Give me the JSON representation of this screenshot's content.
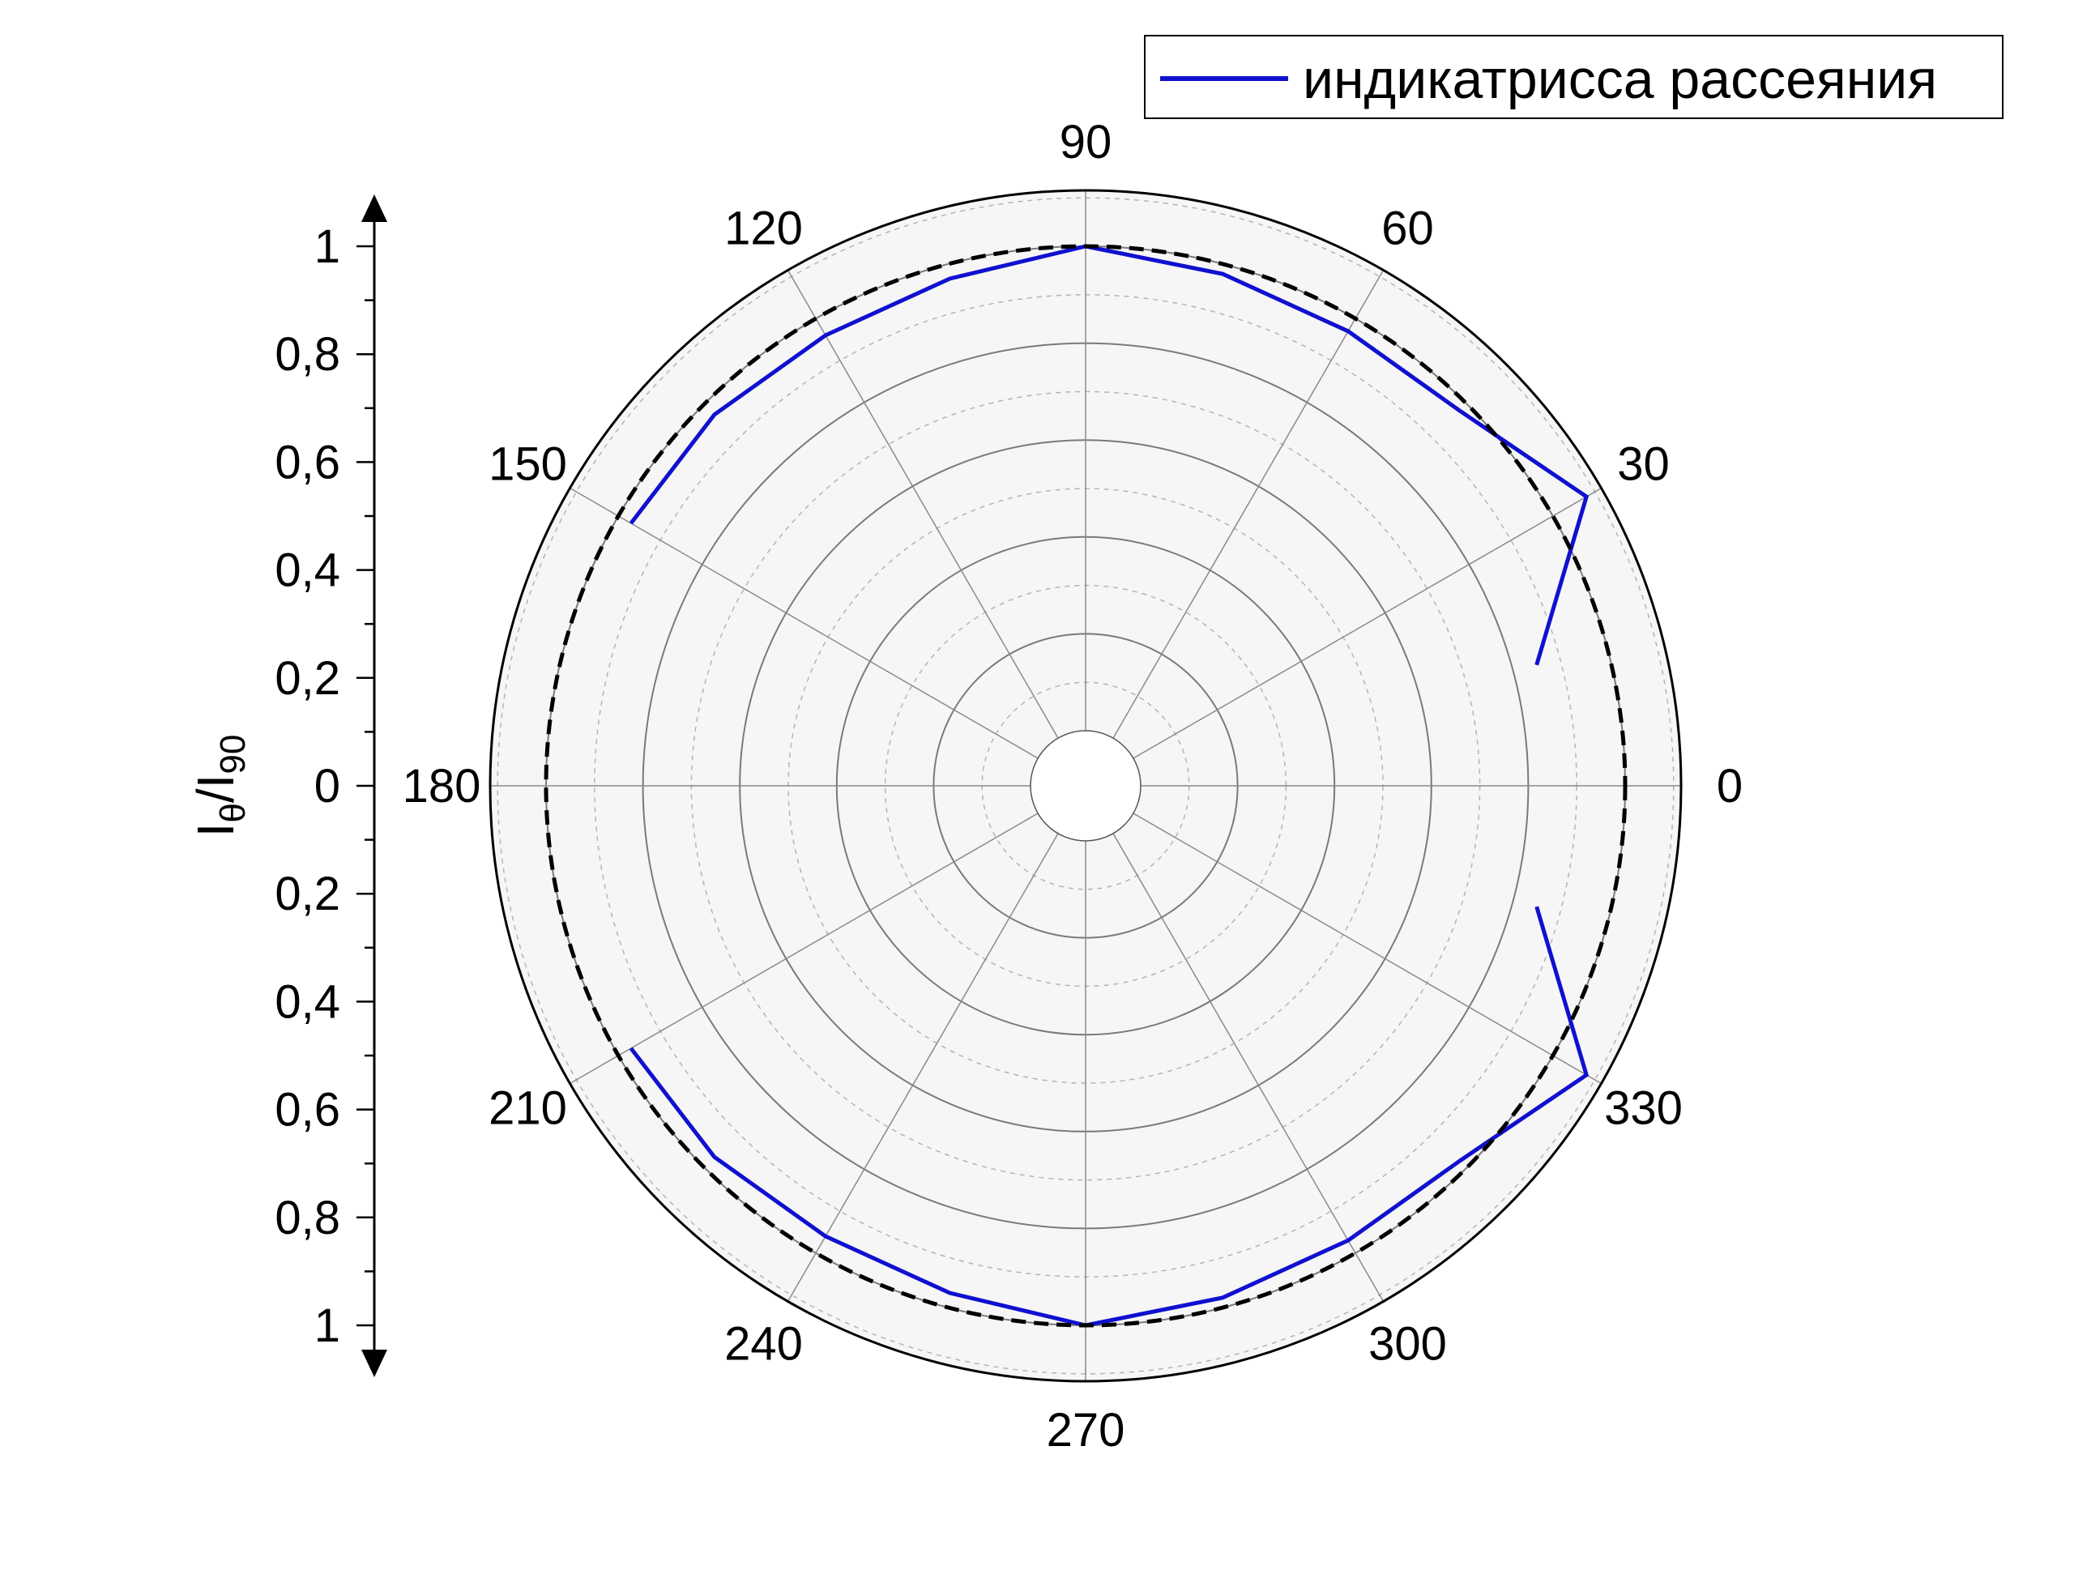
{
  "chart_data": {
    "type": "line",
    "projection": "polar",
    "angle_unit": "degrees",
    "angular_ticks": [
      "0",
      "30",
      "60",
      "90",
      "120",
      "150",
      "180",
      "210",
      "240",
      "270",
      "300",
      "330"
    ],
    "radial_axis": {
      "label_main": "I",
      "label_sub1": "θ",
      "label_slash": "/I",
      "label_sub2": "90",
      "ticks_upper": [
        "1",
        "0,8",
        "0,6",
        "0,4",
        "0,2",
        "0"
      ],
      "ticks_lower": [
        "0,2",
        "0,4",
        "0,6",
        "0,8",
        "1"
      ],
      "range": [
        0,
        1
      ]
    },
    "grid": true,
    "legend_position": "top-right",
    "series": [
      {
        "name": "индикатрисса рассеяния",
        "color": "#1010d0",
        "style": "solid",
        "segments": [
          {
            "theta": [
              15,
              30,
              45,
              60,
              75,
              90,
              105,
              120,
              135,
              150
            ],
            "r": [
              0.85,
              1.08,
              0.98,
              0.97,
              0.98,
              1.0,
              0.97,
              0.96,
              0.97,
              0.97
            ]
          },
          {
            "theta": [
              210,
              225,
              240,
              255,
              270,
              285,
              300,
              315,
              330,
              345
            ],
            "r": [
              0.97,
              0.97,
              0.96,
              0.97,
              1.0,
              0.98,
              0.97,
              0.98,
              1.08,
              0.85
            ]
          }
        ]
      },
      {
        "name": "",
        "color": "#000000",
        "style": "dashed",
        "theta": [
          0,
          360
        ],
        "r": [
          1.0,
          1.0
        ]
      }
    ]
  }
}
